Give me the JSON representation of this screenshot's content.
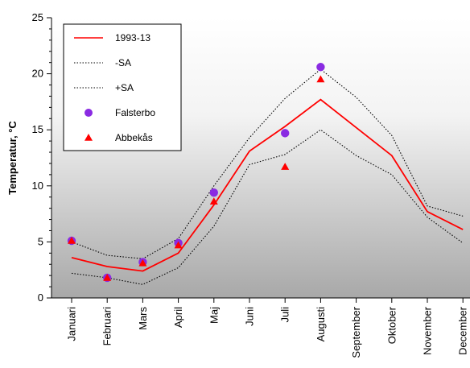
{
  "chart_data": {
    "type": "line",
    "ylabel": "Temperatur, °C",
    "xlabel": "",
    "ylim": [
      0,
      25
    ],
    "yticks": [
      0,
      5,
      10,
      15,
      20,
      25
    ],
    "categories": [
      "Januari",
      "Februari",
      "Mars",
      "April",
      "Maj",
      "Juni",
      "Juli",
      "Augusti",
      "September",
      "Oktober",
      "November",
      "December"
    ],
    "legend_position": "top-left",
    "background": "vertical gradient, white to grey",
    "series": [
      {
        "name": "1993-13",
        "kind": "line",
        "style": "solid",
        "color": "#ff0000",
        "values": [
          3.6,
          2.8,
          2.4,
          4.0,
          8.3,
          13.1,
          15.3,
          17.7,
          15.2,
          12.7,
          7.7,
          6.1
        ]
      },
      {
        "name": "-SA",
        "kind": "line",
        "style": "dotted",
        "color": "#000000",
        "values": [
          5.0,
          3.8,
          3.5,
          5.3,
          10.0,
          14.3,
          17.8,
          20.4,
          17.9,
          14.5,
          8.2,
          7.3
        ]
      },
      {
        "name": "+SA",
        "kind": "line",
        "style": "dotted",
        "color": "#000000",
        "values": [
          2.2,
          1.8,
          1.2,
          2.7,
          6.4,
          11.9,
          12.8,
          15.0,
          12.7,
          11.0,
          7.2,
          4.9
        ]
      },
      {
        "name": "Falsterbo",
        "kind": "marker",
        "marker": "circle",
        "color": "#8a2be2",
        "values": [
          5.1,
          1.8,
          3.2,
          4.9,
          9.4,
          null,
          14.7,
          20.6,
          null,
          null,
          null,
          null
        ]
      },
      {
        "name": "Abbekås",
        "kind": "marker",
        "marker": "triangle",
        "color": "#ff0000",
        "values": [
          5.1,
          1.8,
          3.1,
          4.7,
          8.6,
          null,
          11.7,
          19.5,
          null,
          null,
          null,
          null
        ]
      }
    ]
  }
}
